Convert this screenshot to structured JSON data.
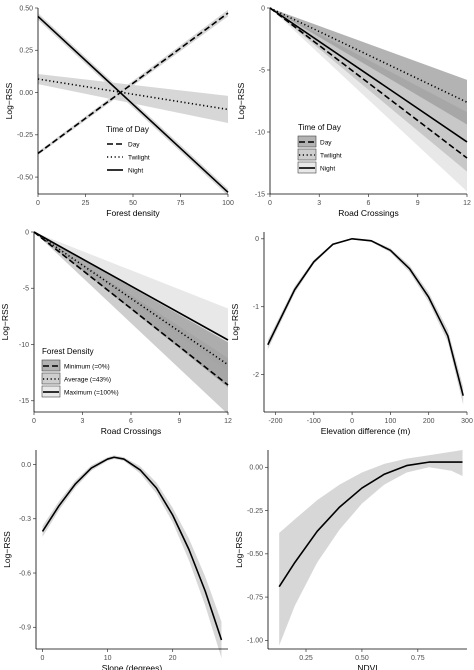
{
  "figure": {
    "panels": [
      {
        "id": "a",
        "ylabel": "Log−RSS",
        "xlabel": "Forest density"
      },
      {
        "id": "b",
        "ylabel": "Log−RSS",
        "xlabel": "Road Crossings"
      },
      {
        "id": "c",
        "ylabel": "Log−RSS",
        "xlabel": "Road Crossings"
      },
      {
        "id": "d",
        "ylabel": "Log−RSS",
        "xlabel": "Elevation difference (m)"
      },
      {
        "id": "e",
        "ylabel": "Log−RSS",
        "xlabel": "Slope (degrees)"
      },
      {
        "id": "f",
        "ylabel": "Log−RSS",
        "xlabel": "NDVI"
      }
    ]
  },
  "chart_data": [
    {
      "type": "line",
      "xlabel": "Forest density",
      "ylabel": "Log−RSS",
      "xlim": [
        0,
        100
      ],
      "ylim": [
        -0.6,
        0.5
      ],
      "xticks": [
        "0",
        "25",
        "50",
        "75",
        "100"
      ],
      "yticks": [
        "0.50",
        "0.25",
        "0.00",
        "-0.25",
        "-0.50"
      ],
      "grid": false,
      "legend": {
        "title": "Time of Day",
        "position": "bottom-left"
      },
      "series": [
        {
          "name": "Day",
          "linestyle": "dashed",
          "x": [
            0,
            100
          ],
          "y": [
            -0.36,
            0.47
          ],
          "lower": [
            -0.37,
            0.45
          ],
          "upper": [
            -0.35,
            0.49
          ]
        },
        {
          "name": "Twilight",
          "linestyle": "dotted",
          "x": [
            0,
            100
          ],
          "y": [
            0.08,
            -0.1
          ],
          "lower": [
            0.05,
            -0.18
          ],
          "upper": [
            0.11,
            -0.02
          ]
        },
        {
          "name": "Night",
          "linestyle": "solid",
          "x": [
            0,
            100
          ],
          "y": [
            0.45,
            -0.59
          ],
          "lower": [
            0.43,
            -0.61
          ],
          "upper": [
            0.47,
            -0.57
          ]
        }
      ]
    },
    {
      "type": "line",
      "xlabel": "Road Crossings",
      "ylabel": "Log−RSS",
      "xlim": [
        0,
        12
      ],
      "ylim": [
        -15,
        0
      ],
      "xticks": [
        "0",
        "3",
        "6",
        "9",
        "12"
      ],
      "yticks": [
        "0",
        "-5",
        "-10",
        "-15"
      ],
      "grid": false,
      "legend": {
        "title": "Time of Day",
        "position": "bottom-center"
      },
      "series": [
        {
          "name": "Day",
          "linestyle": "dashed",
          "x": [
            0,
            12
          ],
          "y": [
            0,
            -12.1
          ],
          "lower": [
            0,
            -14.8
          ],
          "upper": [
            0,
            -9.4
          ]
        },
        {
          "name": "Twilight",
          "linestyle": "dotted",
          "x": [
            0,
            12
          ],
          "y": [
            0,
            -7.6
          ],
          "lower": [
            0,
            -9.4
          ],
          "upper": [
            0,
            -5.8
          ]
        },
        {
          "name": "Night",
          "linestyle": "solid",
          "x": [
            0,
            12
          ],
          "y": [
            0,
            -10.8
          ],
          "lower": [
            0,
            -13.2
          ],
          "upper": [
            0,
            -8.4
          ]
        }
      ]
    },
    {
      "type": "line",
      "xlabel": "Road Crossings",
      "ylabel": "Log−RSS",
      "xlim": [
        0,
        12
      ],
      "ylim": [
        -16,
        0
      ],
      "xticks": [
        "0",
        "3",
        "6",
        "9",
        "12"
      ],
      "yticks": [
        "0",
        "-5",
        "-10",
        "-15"
      ],
      "grid": false,
      "legend": {
        "title": "Forest Density",
        "position": "bottom-left"
      },
      "series": [
        {
          "name": "Minimum (=0%)",
          "linestyle": "dashed",
          "x": [
            0,
            12
          ],
          "y": [
            0,
            -13.6
          ],
          "lower": [
            0,
            -16.2
          ],
          "upper": [
            0,
            -11.2
          ]
        },
        {
          "name": "Average (=43%)",
          "linestyle": "dotted",
          "x": [
            0,
            12
          ],
          "y": [
            0,
            -11.8
          ],
          "lower": [
            0,
            -13.8
          ],
          "upper": [
            0,
            -9.8
          ]
        },
        {
          "name": "Maximum (=100%)",
          "linestyle": "solid",
          "x": [
            0,
            12
          ],
          "y": [
            0,
            -9.6
          ],
          "lower": [
            0,
            -12.4
          ],
          "upper": [
            0,
            -6.8
          ]
        }
      ]
    },
    {
      "type": "line",
      "xlabel": "Elevation difference (m)",
      "ylabel": "Log−RSS",
      "xlim": [
        -230,
        300
      ],
      "ylim": [
        -2.55,
        0.1
      ],
      "xticks": [
        "-200",
        "-100",
        "0",
        "100",
        "200",
        "300"
      ],
      "yticks": [
        "0",
        "-1",
        "-2"
      ],
      "grid": false,
      "series": [
        {
          "name": "",
          "x": [
            -220,
            -150,
            -100,
            -50,
            0,
            50,
            100,
            150,
            200,
            250,
            290
          ],
          "y": [
            -1.56,
            -0.75,
            -0.34,
            -0.08,
            0.0,
            -0.03,
            -0.17,
            -0.44,
            -0.86,
            -1.43,
            -2.31
          ],
          "band": [
            0.07,
            0.05,
            0.03,
            0.015,
            0.01,
            0.015,
            0.03,
            0.05,
            0.07,
            0.09,
            0.13
          ]
        }
      ]
    },
    {
      "type": "line",
      "xlabel": "Slope (degrees)",
      "ylabel": "Log−RSS",
      "xlim": [
        -1,
        28.5
      ],
      "ylim": [
        -1.02,
        0.08
      ],
      "xticks": [
        "0",
        "10",
        "20"
      ],
      "yticks": [
        "0.0",
        "-0.3",
        "-0.6",
        "-0.9"
      ],
      "grid": false,
      "series": [
        {
          "name": "",
          "x": [
            0,
            2.5,
            5,
            7.5,
            10,
            11,
            12.5,
            15,
            17.5,
            20,
            22.5,
            25,
            27.5
          ],
          "y": [
            -0.37,
            -0.23,
            -0.11,
            -0.02,
            0.03,
            0.04,
            0.03,
            -0.03,
            -0.13,
            -0.28,
            -0.47,
            -0.7,
            -0.97
          ],
          "band": [
            0.03,
            0.025,
            0.02,
            0.015,
            0.01,
            0.01,
            0.01,
            0.02,
            0.03,
            0.04,
            0.06,
            0.08,
            0.1
          ]
        }
      ]
    },
    {
      "type": "line",
      "xlabel": "NDVI",
      "ylabel": "Log−RSS",
      "xlim": [
        0.08,
        0.97
      ],
      "ylim": [
        -1.05,
        0.1
      ],
      "xticks": [
        "0.25",
        "0.50",
        "0.75"
      ],
      "yticks": [
        "0.00",
        "-0.25",
        "-0.50",
        "-0.75",
        "-1.00"
      ],
      "grid": false,
      "series": [
        {
          "name": "",
          "x": [
            0.13,
            0.2,
            0.3,
            0.4,
            0.5,
            0.6,
            0.7,
            0.8,
            0.9,
            0.95
          ],
          "y": [
            -0.69,
            -0.55,
            -0.37,
            -0.23,
            -0.12,
            -0.04,
            0.01,
            0.03,
            0.03,
            0.03
          ],
          "lower": [
            -1.03,
            -0.8,
            -0.55,
            -0.36,
            -0.21,
            -0.1,
            -0.03,
            0.0,
            -0.02,
            -0.05
          ],
          "upper": [
            -0.38,
            -0.3,
            -0.19,
            -0.1,
            -0.03,
            0.02,
            0.05,
            0.07,
            0.09,
            0.1
          ]
        }
      ]
    }
  ]
}
